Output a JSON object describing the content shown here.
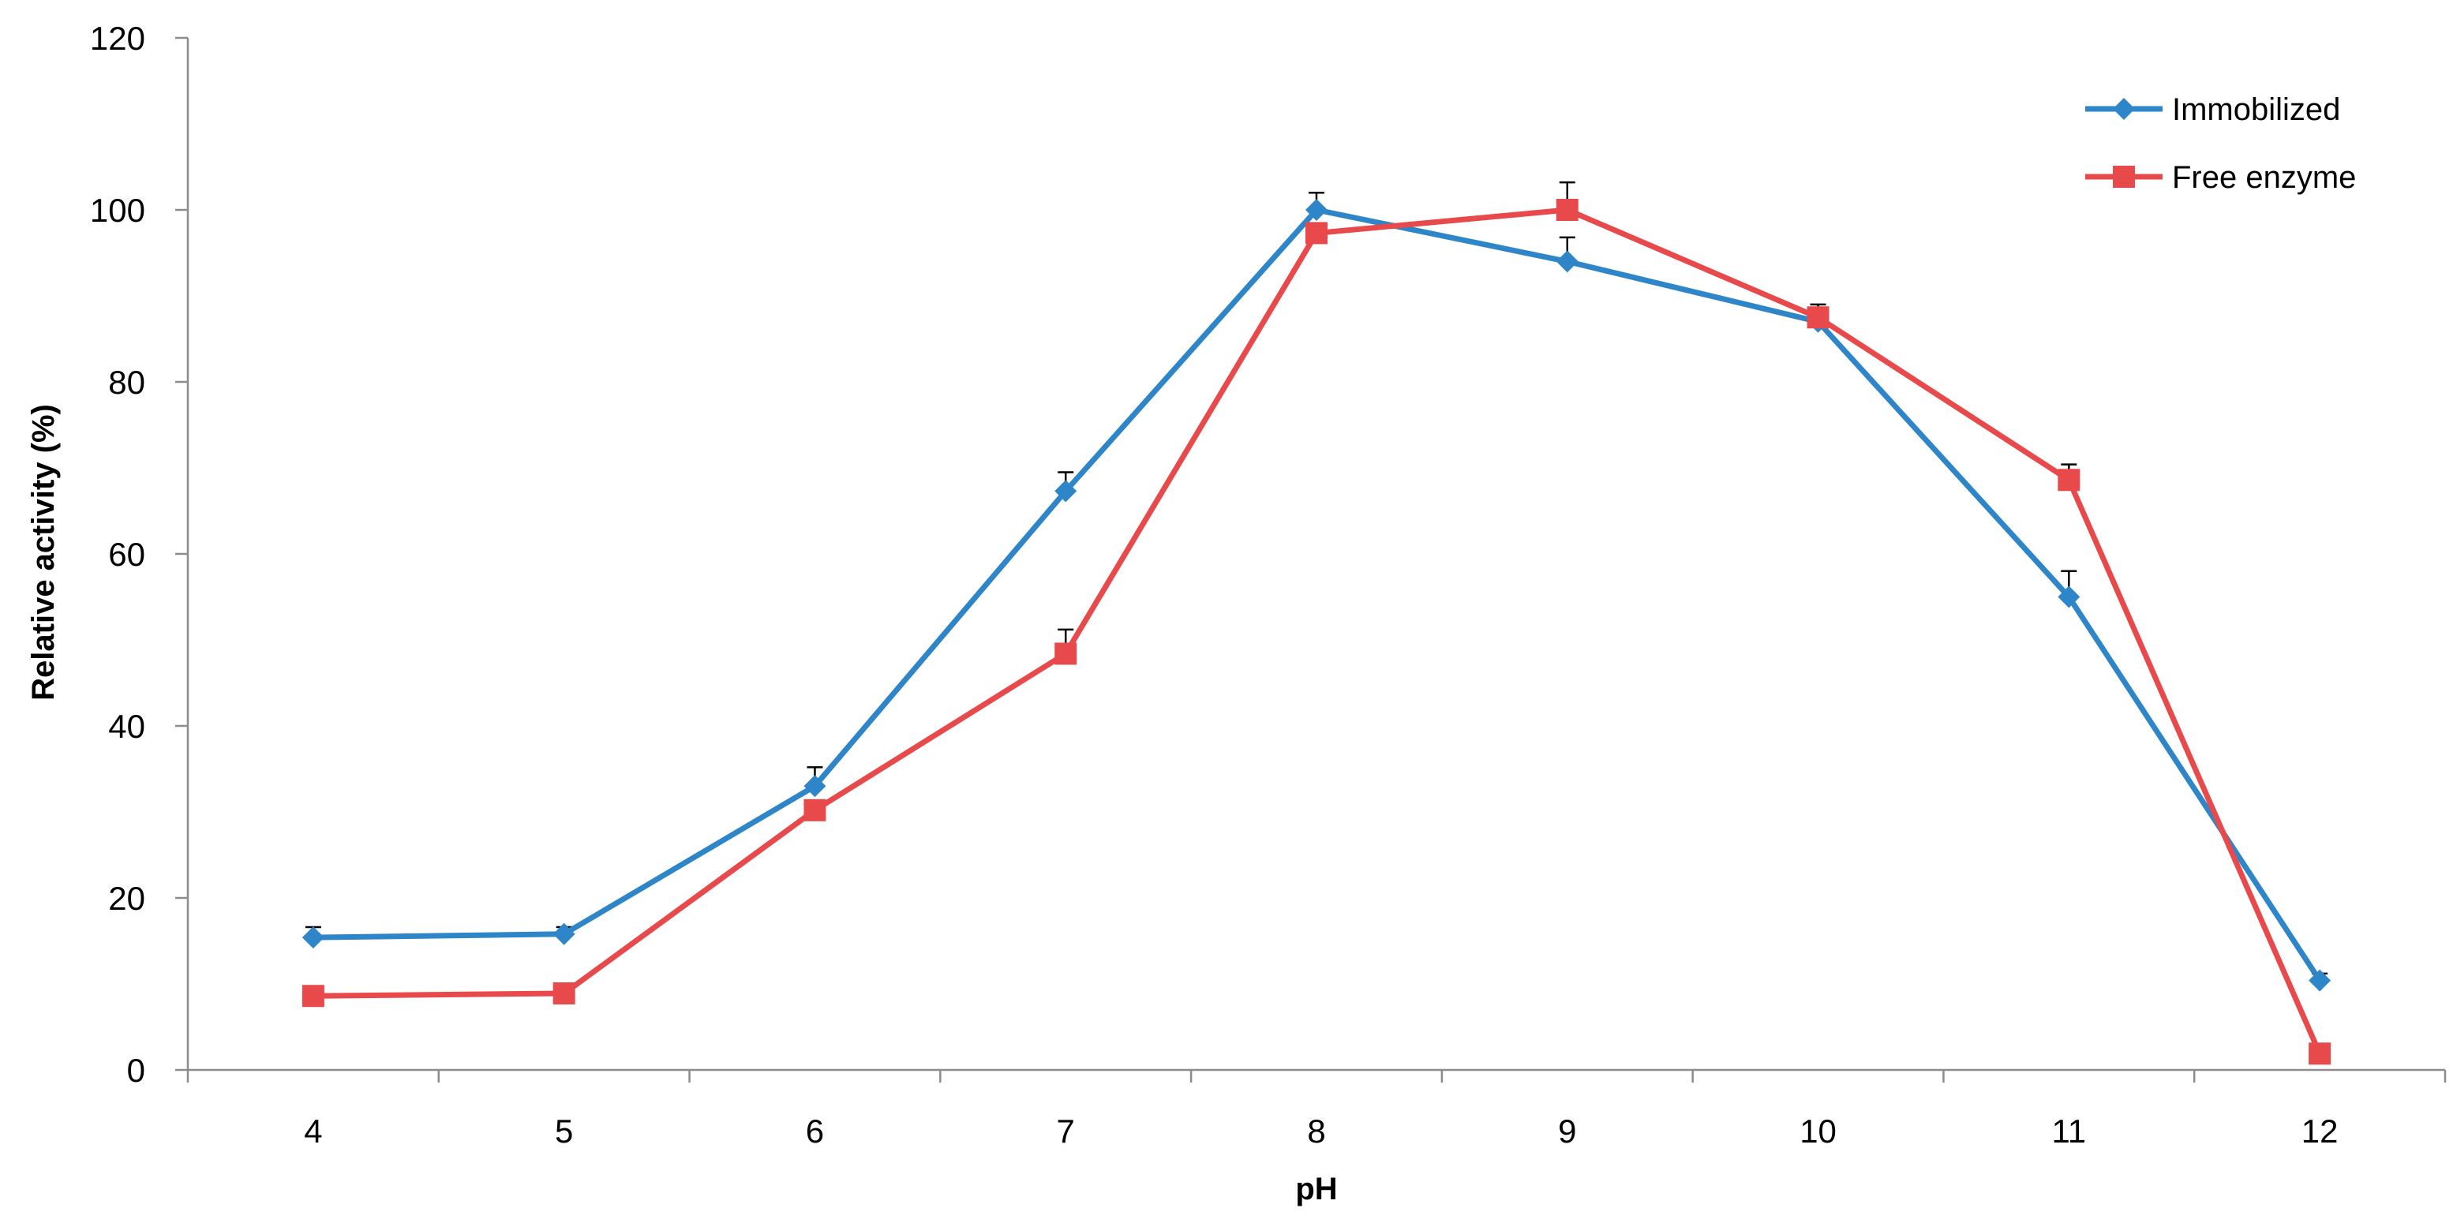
{
  "chart_data": {
    "type": "line",
    "title": "",
    "xlabel": "pH",
    "ylabel": "Relative activity (%)",
    "x": [
      4,
      5,
      6,
      7,
      8,
      9,
      10,
      11,
      12
    ],
    "x_tick_labels": [
      "4",
      "5",
      "6",
      "7",
      "8",
      "9",
      "10",
      "11",
      "12"
    ],
    "xlim": [
      3.5,
      12.5
    ],
    "ylim": [
      0,
      120
    ],
    "y_ticks": [
      0,
      20,
      40,
      60,
      80,
      100,
      120
    ],
    "y_tick_labels": [
      "0",
      "20",
      "40",
      "60",
      "80",
      "100",
      "120"
    ],
    "grid": false,
    "legend_position": "top-right",
    "series": [
      {
        "name": "Immobilized",
        "color": "#2E86C8",
        "marker": "diamond",
        "values": [
          15.4,
          15.8,
          33.0,
          67.3,
          100.0,
          94.0,
          87.0,
          55.0,
          10.4
        ],
        "error": [
          1.2,
          0.8,
          2.2,
          2.2,
          2.0,
          2.8,
          1.6,
          3.0,
          0.8
        ]
      },
      {
        "name": "Free enzyme",
        "color": "#E8494B",
        "marker": "square",
        "values": [
          8.6,
          8.9,
          30.2,
          48.4,
          97.3,
          100.0,
          87.5,
          68.6,
          1.9
        ],
        "error": [
          0.5,
          0.5,
          1.0,
          2.8,
          1.0,
          3.2,
          1.5,
          1.8,
          0.5
        ]
      }
    ]
  }
}
